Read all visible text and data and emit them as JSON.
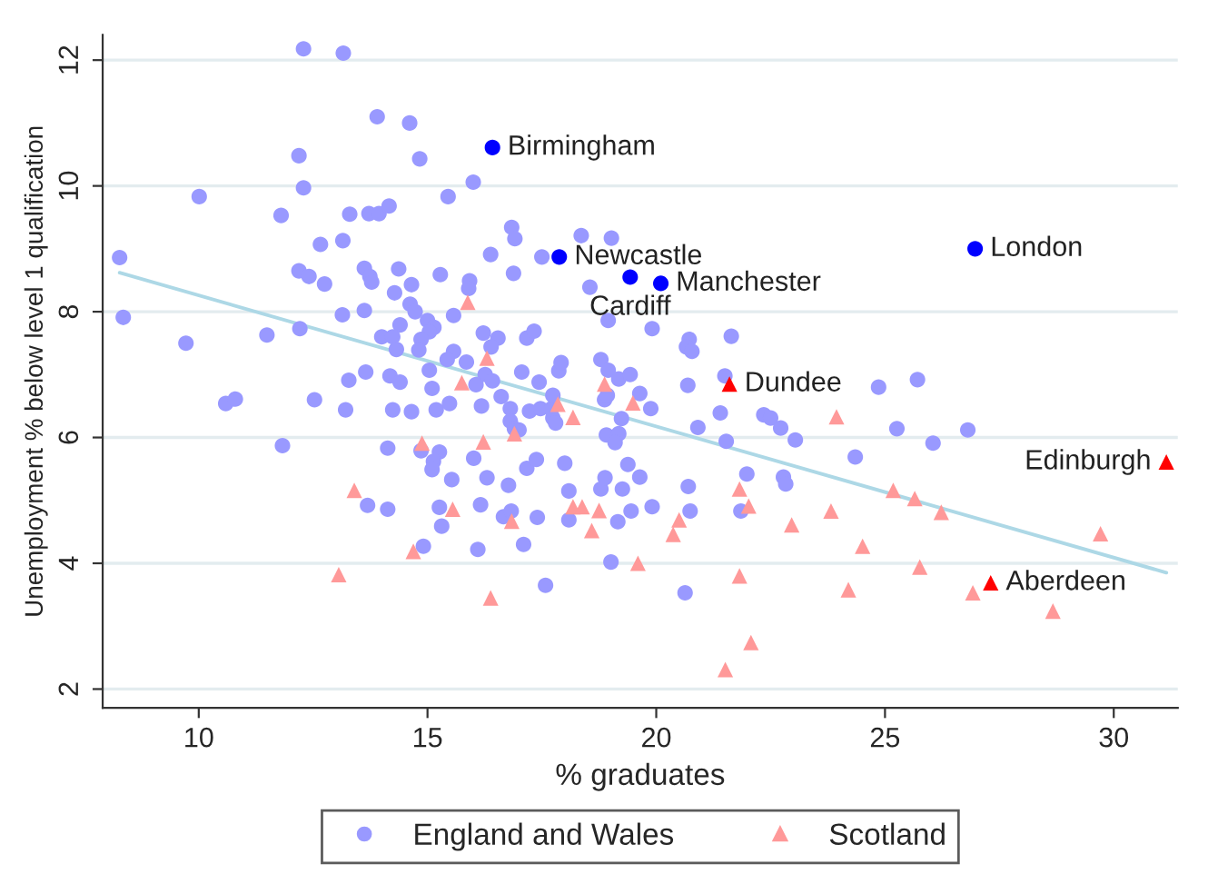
{
  "chart_data": {
    "type": "scatter",
    "xlabel": "% graduates",
    "ylabel": "Unemployment % below level 1 qualification",
    "xlim": [
      7.9,
      31.4
    ],
    "ylim": [
      1.7,
      12.4
    ],
    "xticks": [
      10,
      15,
      20,
      25,
      30
    ],
    "yticks": [
      2,
      4,
      6,
      8,
      10,
      12
    ],
    "grid": "y",
    "legend": "bottom",
    "series": [
      {
        "name": "England and Wales",
        "color": "#9999ff",
        "marker": "circle",
        "x": [
          12.29,
          13.16,
          13.9,
          14.61,
          12.19,
          14.83,
          12.29,
          16.0,
          10.01,
          15.45,
          11.8,
          13.3,
          13.72,
          13.94,
          14.16,
          16.84,
          16.91,
          18.36,
          19.02,
          12.66,
          13.15,
          8.27,
          16.38,
          17.5,
          12.19,
          12.41,
          12.75,
          13.62,
          13.74,
          13.78,
          14.37,
          15.28,
          15.92,
          16.88,
          18.55,
          14.28,
          14.65,
          8.35,
          9.72,
          11.49,
          12.21,
          13.14,
          13.62,
          14.62,
          14.73,
          15.0,
          15.14,
          15.04,
          15.57,
          14.4,
          14.0,
          14.24,
          14.32,
          14.86,
          14.81,
          15.9,
          16.22,
          16.54,
          16.39,
          17.17,
          17.33,
          18.95,
          15.57,
          15.43,
          15.85,
          16.26,
          16.42,
          17.06,
          17.44,
          17.87,
          17.92,
          18.79,
          18.95,
          19.18,
          19.43,
          15.04,
          13.28,
          13.65,
          14.18,
          14.4,
          15.1,
          16.06,
          10.59,
          10.8,
          12.53,
          13.21,
          14.24,
          14.65,
          15.19,
          15.48,
          16.18,
          16.61,
          16.81,
          17.23,
          17.47,
          17.71,
          17.74,
          17.74,
          17.8,
          16.81,
          16.9,
          17.0,
          18.87,
          18.93,
          19.24,
          18.91,
          19.18,
          19.1,
          11.83,
          14.13,
          14.86,
          15.26,
          15.13,
          15.1,
          16.01,
          15.53,
          16.3,
          17.17,
          17.38,
          16.77,
          18.0,
          18.09,
          18.79,
          18.88,
          19.26,
          19.38,
          19.45,
          19.16,
          18.09,
          19.01,
          13.69,
          14.13,
          15.26,
          15.31,
          16.16,
          16.66,
          16.83,
          17.4,
          17.1,
          16.1,
          14.91,
          17.58,
          19.91,
          20.72,
          20.66,
          20.78,
          21.64,
          19.64,
          19.91,
          19.64,
          19.88,
          20.69,
          21.5,
          21.4,
          20.91,
          21.53,
          22.35,
          22.5,
          22.72,
          23.04,
          24.86,
          25.71,
          25.26,
          26.81,
          26.05,
          24.35,
          21.98,
          22.78,
          22.83,
          20.7,
          20.74,
          21.85,
          20.63
        ],
        "values": [
          12.18,
          12.11,
          11.1,
          11.0,
          10.48,
          10.43,
          9.97,
          10.06,
          9.83,
          9.83,
          9.53,
          9.55,
          9.56,
          9.56,
          9.68,
          9.34,
          9.16,
          9.21,
          9.17,
          9.07,
          9.13,
          8.86,
          8.91,
          8.87,
          8.65,
          8.56,
          8.44,
          8.69,
          8.56,
          8.47,
          8.68,
          8.59,
          8.49,
          8.61,
          8.39,
          8.3,
          8.43,
          7.91,
          7.5,
          7.63,
          7.73,
          7.95,
          8.02,
          8.12,
          8.0,
          7.86,
          7.75,
          7.68,
          7.94,
          7.79,
          7.6,
          7.6,
          7.4,
          7.56,
          7.39,
          8.37,
          7.66,
          7.58,
          7.44,
          7.58,
          7.69,
          7.86,
          7.37,
          7.24,
          7.2,
          7.0,
          6.9,
          7.04,
          6.88,
          7.06,
          7.19,
          7.24,
          7.07,
          6.93,
          7.0,
          7.07,
          6.91,
          7.04,
          6.98,
          6.88,
          6.78,
          6.84,
          6.54,
          6.61,
          6.6,
          6.44,
          6.44,
          6.41,
          6.44,
          6.54,
          6.5,
          6.65,
          6.46,
          6.42,
          6.46,
          6.46,
          6.67,
          6.31,
          6.23,
          6.26,
          6.14,
          6.12,
          6.6,
          6.67,
          6.3,
          6.04,
          6.06,
          5.92,
          5.87,
          5.83,
          5.79,
          5.77,
          5.62,
          5.49,
          5.67,
          5.33,
          5.36,
          5.51,
          5.65,
          5.24,
          5.59,
          5.15,
          5.18,
          5.36,
          5.18,
          5.57,
          4.83,
          4.66,
          4.69,
          4.02,
          4.92,
          4.86,
          4.89,
          4.59,
          4.93,
          4.74,
          4.83,
          4.73,
          4.3,
          4.22,
          4.27,
          3.65,
          7.73,
          7.56,
          7.44,
          7.37,
          7.61,
          5.37,
          4.9,
          6.7,
          6.46,
          6.83,
          6.98,
          6.39,
          6.16,
          5.94,
          6.36,
          6.31,
          6.15,
          5.96,
          6.8,
          6.92,
          6.14,
          6.12,
          5.91,
          5.69,
          5.42,
          5.37,
          5.26,
          5.22,
          4.83,
          4.83,
          3.53
        ]
      },
      {
        "name": "Scotland",
        "color": "#ff9999",
        "marker": "triangle",
        "x": [
          15.88,
          16.3,
          15.75,
          17.85,
          18.18,
          16.9,
          18.87,
          19.49,
          14.88,
          16.22,
          18.38,
          18.18,
          18.75,
          18.59,
          19.6,
          13.4,
          15.55,
          16.84,
          14.69,
          13.06,
          16.38,
          21.82,
          22.02,
          20.5,
          20.37,
          22.96,
          23.82,
          25.18,
          25.65,
          26.23,
          24.51,
          29.71,
          25.76,
          21.82,
          24.2,
          26.92,
          28.67,
          22.07,
          21.51,
          23.94
        ],
        "values": [
          8.15,
          7.26,
          6.87,
          6.53,
          6.32,
          6.06,
          6.85,
          6.55,
          5.91,
          5.93,
          4.9,
          4.9,
          4.84,
          4.52,
          4.0,
          5.16,
          4.86,
          4.67,
          4.19,
          3.82,
          3.45,
          5.18,
          4.91,
          4.69,
          4.46,
          4.61,
          4.83,
          5.16,
          5.03,
          4.81,
          4.27,
          4.47,
          3.94,
          3.8,
          3.58,
          3.53,
          3.24,
          2.74,
          2.31,
          6.33
        ]
      },
      {
        "color": "#0000ff",
        "marker": "circle",
        "x": [
          16.42,
          17.88,
          19.43,
          20.1,
          26.97
        ],
        "values": [
          10.61,
          8.87,
          8.55,
          8.45,
          9.0
        ],
        "value_labels": [
          "Birmingham",
          "Newcastle",
          "Cardiff",
          "Manchester",
          "London"
        ]
      },
      {
        "color": "#ff0000",
        "marker": "triangle",
        "x": [
          21.6,
          27.31,
          31.15
        ],
        "values": [
          6.85,
          3.69,
          5.61
        ],
        "value_labels": [
          "Dundee",
          "Aberdeen",
          "Edinburgh"
        ]
      },
      {
        "type": "line",
        "color": "#add8e6",
        "line_style": "solid",
        "marker": "none",
        "x": [
          8.27,
          31.15
        ],
        "values": [
          8.62,
          3.85
        ]
      }
    ]
  }
}
